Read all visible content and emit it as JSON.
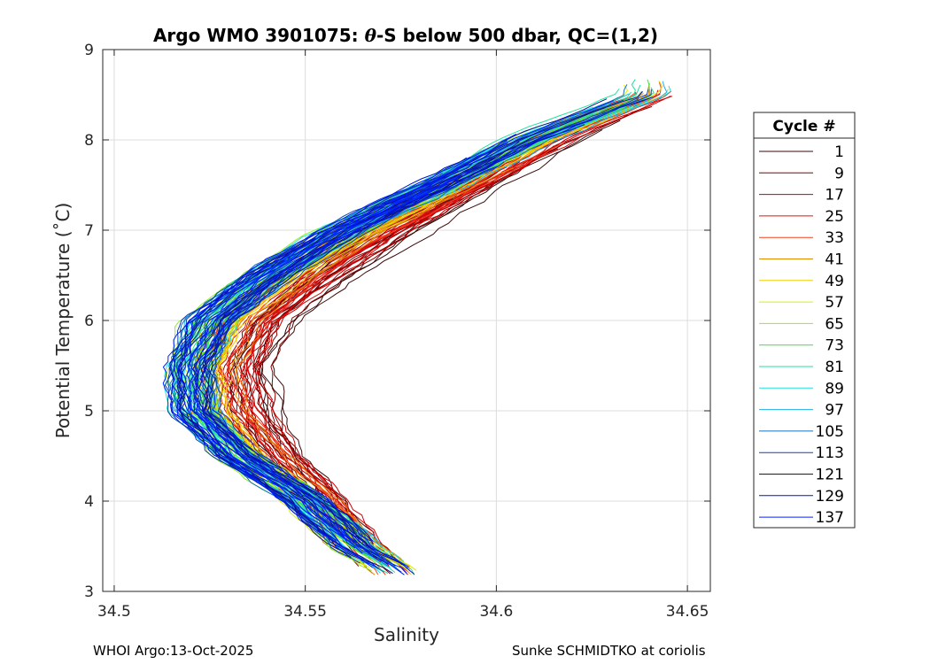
{
  "chart_data": {
    "type": "line",
    "title_prefix": "Argo WMO 3901075: ",
    "title_theta": "θ",
    "title_suffix": "-S below 500 dbar,  QC=(1,2)",
    "xlabel": "Salinity",
    "ylabel": "Potential Temperature (˚C)",
    "xlim": [
      34.497,
      34.656
    ],
    "ylim": [
      3,
      9
    ],
    "xticks": [
      34.5,
      34.55,
      34.6,
      34.65
    ],
    "xtick_labels": [
      "34.5",
      "34.55",
      "34.6",
      "34.65"
    ],
    "yticks": [
      3,
      4,
      5,
      6,
      7,
      8,
      9
    ],
    "ytick_labels": [
      "3",
      "4",
      "5",
      "6",
      "7",
      "8",
      "9"
    ],
    "grid": true,
    "legend_title": "Cycle #",
    "legend_position": "outside-right",
    "series": [
      {
        "name": "1",
        "color": "#3a0a0a"
      },
      {
        "name": "9",
        "color": "#8b0000"
      },
      {
        "name": "17",
        "color": "#c80000"
      },
      {
        "name": "25",
        "color": "#e01010"
      },
      {
        "name": "33",
        "color": "#f04020"
      },
      {
        "name": "41",
        "color": "#e88a00"
      },
      {
        "name": "49",
        "color": "#f0d000"
      },
      {
        "name": "57",
        "color": "#d8f000"
      },
      {
        "name": "65",
        "color": "#90ee20"
      },
      {
        "name": "73",
        "color": "#40e040"
      },
      {
        "name": "81",
        "color": "#20e0a0"
      },
      {
        "name": "89",
        "color": "#20e0e0"
      },
      {
        "name": "97",
        "color": "#20b0e8"
      },
      {
        "name": "105",
        "color": "#1070c0"
      },
      {
        "name": "113",
        "color": "#1040b0"
      },
      {
        "name": "121",
        "color": "#101080"
      },
      {
        "name": "129",
        "color": "#0010d0"
      },
      {
        "name": "137",
        "color": "#0020ff"
      }
    ],
    "profile_shape": {
      "temps": [
        3.2,
        3.5,
        4.0,
        4.5,
        5.0,
        5.5,
        6.0,
        6.5,
        7.0,
        7.5,
        8.0,
        8.5
      ],
      "salinity_blue": [
        34.575,
        34.563,
        34.55,
        34.532,
        34.521,
        34.52,
        34.525,
        34.54,
        34.56,
        34.585,
        34.608,
        34.638
      ],
      "salinity_red": [
        34.572,
        34.565,
        34.557,
        34.547,
        34.54,
        34.538,
        34.545,
        34.56,
        34.578,
        34.598,
        34.618,
        34.645
      ]
    }
  },
  "footer": {
    "left": "WHOI Argo:13-Oct-2025",
    "right": "Sunke SCHMIDTKO at coriolis"
  }
}
